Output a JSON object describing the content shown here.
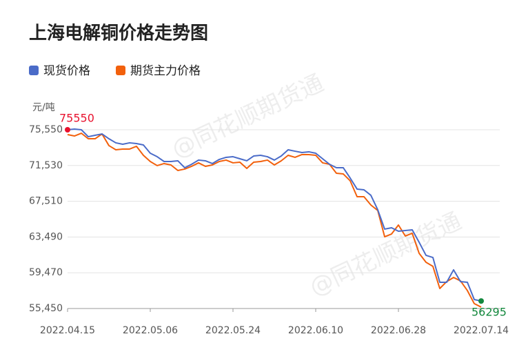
{
  "chart_data": {
    "type": "line",
    "title": "上海电解铜价格走势图",
    "y_label": "元/吨",
    "watermark": "@同花顺期货通",
    "categories": [
      "2022.04.15",
      null,
      null,
      null,
      null,
      null,
      null,
      null,
      null,
      null,
      null,
      null,
      "2022.05.06",
      null,
      null,
      null,
      null,
      null,
      null,
      null,
      null,
      null,
      null,
      null,
      "2022.05.24",
      null,
      null,
      null,
      null,
      null,
      null,
      null,
      null,
      null,
      null,
      null,
      "2022.06.10",
      null,
      null,
      null,
      null,
      null,
      null,
      null,
      null,
      null,
      null,
      null,
      "2022.06.28",
      null,
      null,
      null,
      null,
      null,
      null,
      null,
      null,
      null,
      null,
      null,
      "2022.07.14"
    ],
    "series": [
      {
        "name": "现货价格",
        "color": "#4a6bc8",
        "values": [
          75550,
          75630,
          75550,
          74770,
          74930,
          75080,
          74540,
          74080,
          73920,
          74080,
          74000,
          73840,
          72910,
          72520,
          71980,
          71980,
          72060,
          71280,
          71670,
          72140,
          72060,
          71750,
          72210,
          72450,
          72520,
          72290,
          72060,
          72600,
          72680,
          72520,
          72140,
          72600,
          73300,
          73140,
          72990,
          73070,
          72910,
          72290,
          71670,
          71280,
          71280,
          70120,
          68880,
          68800,
          68180,
          66550,
          64380,
          64530,
          64140,
          64220,
          64300,
          62900,
          61430,
          61190,
          58400,
          58400,
          59800,
          58480,
          58400,
          56460,
          56295
        ]
      },
      {
        "name": "期货主力价格",
        "color": "#f2600c",
        "values": [
          75010,
          74850,
          75160,
          74540,
          74540,
          75080,
          73770,
          73300,
          73380,
          73380,
          73690,
          72680,
          71980,
          71520,
          71750,
          71590,
          70970,
          71130,
          71440,
          71830,
          71440,
          71590,
          71980,
          72140,
          71830,
          71900,
          71200,
          71900,
          71980,
          72140,
          71590,
          72060,
          72680,
          72450,
          72760,
          72760,
          72680,
          71830,
          71670,
          70660,
          70580,
          69810,
          68020,
          68020,
          67090,
          66470,
          63520,
          63830,
          64840,
          63600,
          63910,
          61660,
          60650,
          60190,
          57700,
          58480,
          58940,
          58560,
          57470,
          56000,
          55610
        ]
      }
    ],
    "high_color": "#e8112d",
    "low_color": "#13883d",
    "ylim": [
      55450,
      75550
    ],
    "yticks": [
      {
        "value": 55450,
        "label": "55,450"
      },
      {
        "value": 59470,
        "label": "59,470"
      },
      {
        "value": 63490,
        "label": "63,490"
      },
      {
        "value": 67510,
        "label": "67,510"
      },
      {
        "value": 71530,
        "label": "71,530"
      },
      {
        "value": 75550,
        "label": "75,550"
      }
    ],
    "grid": true
  }
}
